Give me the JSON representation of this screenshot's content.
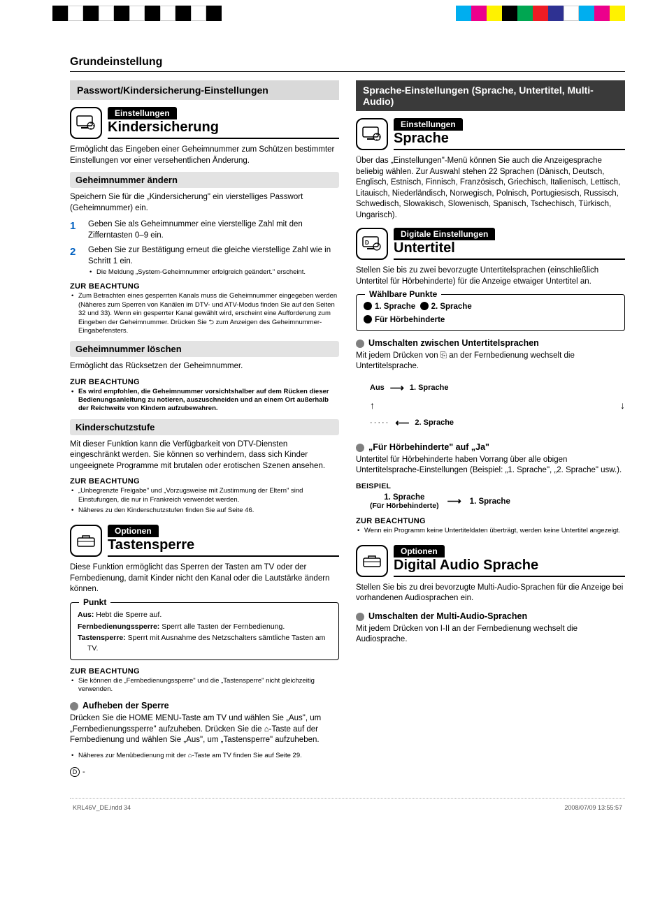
{
  "crop_colors_left": [
    "#000000",
    "#ffffff",
    "#000000",
    "#ffffff",
    "#000000",
    "#ffffff",
    "#000000",
    "#ffffff",
    "#000000",
    "#ffffff",
    "#000000"
  ],
  "crop_colors_right": [
    "#00aeef",
    "#ec008c",
    "#fff200",
    "#000000",
    "#00a651",
    "#ed1c24",
    "#2e3192",
    "#ffffff",
    "#00aeef",
    "#ec008c",
    "#fff200"
  ],
  "page_title": "Grundeinstellung",
  "left": {
    "section_header": "Passwort/Kindersicherung-Einstellungen",
    "block1": {
      "super": "Einstellungen",
      "title": "Kindersicherung",
      "intro": "Ermöglicht das Eingeben einer Geheimnummer zum Schützen bestimmter Einstellungen vor einer versehentlichen Änderung.",
      "sub1": "Geheimnummer ändern",
      "sub1_text": "Speichern Sie für die „Kindersicherung\" ein vierstelliges Passwort (Geheimnummer) ein.",
      "step1": "Geben Sie als Geheimnummer eine vierstellige Zahl mit den Zifferntasten 0–9 ein.",
      "step2": "Geben Sie zur Bestätigung erneut die gleiche vierstellige Zahl wie in Schritt 1 ein.",
      "step2_sub": "Die Meldung „System-Geheimnummer erfolgreich geändert.\" erscheint.",
      "note1_head": "ZUR BEACHTUNG",
      "note1_item": "Zum Betrachten eines gesperrten Kanals muss die Geheimnummer eingegeben werden (Näheres zum Sperren von Kanälen im DTV- und ATV-Modus finden Sie auf den Seiten 32 und 33). Wenn ein gesperrter Kanal gewählt wird, erscheint eine Aufforderung zum Eingeben der Geheimnummer. Drücken Sie ⮌ zum Anzeigen des Geheimnummer-Eingabefensters.",
      "sub2": "Geheimnummer löschen",
      "sub2_text": "Ermöglicht das Rücksetzen der Geheimnummer.",
      "note2_head": "ZUR BEACHTUNG",
      "note2_item": "Es wird empfohlen, die Geheimnummer vorsichtshalber auf dem Rücken dieser Bedienungsanleitung zu notieren, auszuschneiden und an einem Ort außerhalb der Reichweite von Kindern aufzubewahren.",
      "sub3": "Kinderschutzstufe",
      "sub3_text": "Mit dieser Funktion kann die Verfügbarkeit von DTV-Diensten eingeschränkt werden. Sie können so verhindern, dass sich Kinder ungeeignete Programme mit brutalen oder erotischen Szenen ansehen.",
      "note3_head": "ZUR BEACHTUNG",
      "note3_item1": "„Unbegrenzte Freigabe\" und „Vorzugsweise mit Zustimmung der Eltern\" sind Einstufungen, die nur in Frankreich verwendet werden.",
      "note3_item2": "Näheres zu den Kinderschutzstufen finden Sie auf Seite 46."
    },
    "block2": {
      "super": "Optionen",
      "title": "Tastensperre",
      "intro": "Diese Funktion ermöglicht das Sperren der Tasten am TV oder der Fernbedienung, damit Kinder nicht den Kanal oder die Lautstärke ändern können.",
      "frame_title": "Punkt",
      "frame_item1_label": "Aus:",
      "frame_item1_text": " Hebt die Sperre auf.",
      "frame_item2_label": "Fernbedienungssperre:",
      "frame_item2_text": " Sperrt alle Tasten der Fernbedienung.",
      "frame_item3_label": "Tastensperre:",
      "frame_item3_text": " Sperrt mit Ausnahme des Netzschalters sämtliche Tasten am TV.",
      "note_head": "ZUR BEACHTUNG",
      "note_item": "Sie können die „Fernbedienungssperre\" und die „Tastensperre\" nicht gleichzeitig verwenden.",
      "dot_head": "Aufheben der Sperre",
      "dot_text": "Drücken Sie die HOME MENU-Taste am TV und wählen Sie „Aus\", um „Fernbedienungssperre\" aufzuheben. Drücken Sie die ⌂-Taste auf der Fernbedienung und wählen Sie „Aus\", um „Tastensperre\" aufzuheben.",
      "dot_sub": "Näheres zur Menübedienung mit der ⌂-Taste am TV finden Sie auf Seite 29."
    }
  },
  "right": {
    "section_header": "Sprache-Einstellungen (Sprache, Untertitel, Multi-Audio)",
    "block1": {
      "super": "Einstellungen",
      "title": "Sprache",
      "intro": "Über das „Einstellungen\"-Menü können Sie auch die Anzeigesprache beliebig wählen. Zur Auswahl stehen 22 Sprachen (Dänisch, Deutsch, Englisch, Estnisch, Finnisch, Französisch, Griechisch, Italienisch, Lettisch, Litauisch, Niederländisch, Norwegisch, Polnisch, Portugiesisch, Russisch, Schwedisch, Slowakisch, Slowenisch, Spanisch, Tschechisch, Türkisch, Ungarisch)."
    },
    "block2": {
      "super": "Digitale Einstellungen",
      "title": "Untertitel",
      "intro": "Stellen Sie bis zu zwei bevorzugte Untertitelsprachen (einschließlich Untertitel für Hörbehinderte) für die Anzeige etwaiger Untertitel an.",
      "frame_title": "Wählbare Punkte",
      "frame_opt1": "1. Sprache",
      "frame_opt2": "2. Sprache",
      "frame_opt3": "Für Hörbehinderte",
      "dot1_head": "Umschalten zwischen Untertitelsprachen",
      "dot1_text": "Mit jedem Drücken von ⎘ an der Fernbedienung wechselt die Untertitelsprache.",
      "cycle_aus": "Aus",
      "cycle_s1": "1. Sprache",
      "cycle_s2": "2. Sprache",
      "dot2_head": "„Für Hörbehinderte\" auf „Ja\"",
      "dot2_text": "Untertitel für Hörbehinderte haben Vorrang über alle obigen Untertitelsprache-Einstellungen (Beispiel: „1. Sprache\", „2. Sprache\" usw.).",
      "example_label": "BEISPIEL",
      "example_left1": "1. Sprache",
      "example_left2": "(Für Hörbehinderte)",
      "example_right": "1. Sprache",
      "note_head": "ZUR BEACHTUNG",
      "note_item": "Wenn ein Programm keine Untertiteldaten überträgt, werden keine Untertitel angezeigt."
    },
    "block3": {
      "super": "Optionen",
      "title": "Digital Audio Sprache",
      "intro": "Stellen Sie bis zu drei bevorzugte Multi-Audio-Sprachen für die Anzeige bei vorhandenen Audiosprachen ein.",
      "dot_head": "Umschalten der Multi-Audio-Sprachen",
      "dot_text": "Mit jedem Drücken von I-II an der Fernbedienung wechselt die Audiosprache."
    }
  },
  "footer": {
    "file": "KRL46V_DE.indd   34",
    "date": "2008/07/09   13:55:57",
    "pagemark": "D"
  }
}
